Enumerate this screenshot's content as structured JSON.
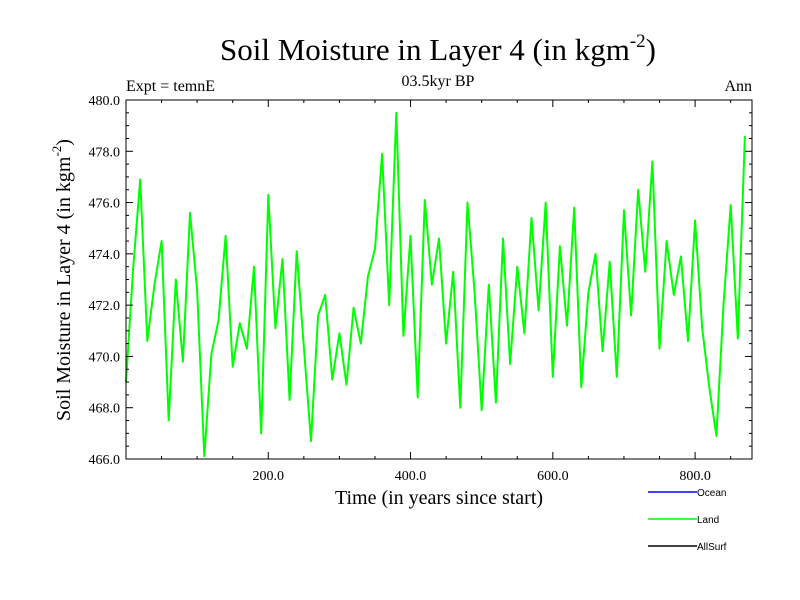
{
  "chart_data": {
    "type": "line",
    "title": "Soil Moisture in Layer 4 (in kgm",
    "title_superscript": "-2",
    "title_close": ")",
    "subtitle": "03.5kyr BP",
    "left_label": "Expt = temnE",
    "right_label": "Ann",
    "xlabel": "Time (in years since start)",
    "ylabel": "Soil Moisture in Layer 4 (in kgm",
    "ylabel_superscript": "-2",
    "ylabel_close": ")",
    "xlim": [
      0,
      880
    ],
    "ylim": [
      466,
      480
    ],
    "x_ticks": [
      200,
      400,
      600,
      800
    ],
    "x_tick_labels": [
      "200.0",
      "400.0",
      "600.0",
      "800.0"
    ],
    "y_ticks": [
      466,
      468,
      470,
      472,
      474,
      476,
      478,
      480
    ],
    "y_tick_labels": [
      "466.0",
      "468.0",
      "470.0",
      "472.0",
      "474.0",
      "476.0",
      "478.0",
      "480.0"
    ],
    "legend_position": "bottom-right",
    "series": [
      {
        "name": "Ocean",
        "color": "#0000ff",
        "values": []
      },
      {
        "name": "Land",
        "color": "#00ff00",
        "x_start": 0,
        "x_step": 10,
        "values": [
          469.0,
          473.4,
          476.9,
          470.6,
          472.8,
          474.5,
          467.5,
          473.0,
          469.8,
          475.6,
          472.6,
          466.1,
          470.1,
          471.4,
          474.7,
          469.6,
          471.3,
          470.3,
          473.5,
          467.0,
          476.3,
          471.1,
          473.8,
          468.3,
          474.1,
          470.4,
          466.7,
          471.6,
          472.4,
          469.1,
          470.9,
          468.9,
          471.9,
          470.5,
          473.1,
          474.2,
          477.9,
          472.0,
          479.5,
          470.8,
          474.7,
          468.4,
          476.1,
          472.8,
          474.6,
          470.5,
          473.3,
          468.0,
          476.0,
          472.5,
          467.9,
          472.8,
          468.2,
          474.6,
          469.7,
          473.5,
          470.9,
          475.4,
          471.8,
          476.0,
          469.2,
          474.3,
          471.2,
          475.8,
          468.8,
          472.5,
          474.0,
          470.2,
          473.7,
          469.2,
          475.7,
          471.6,
          476.5,
          473.3,
          477.6,
          470.3,
          474.5,
          472.4,
          473.9,
          470.6,
          475.3,
          471.1,
          468.8,
          466.9,
          472.0,
          475.9,
          470.7,
          478.6
        ]
      },
      {
        "name": "AllSurf",
        "color": "#000000",
        "values": []
      }
    ]
  }
}
